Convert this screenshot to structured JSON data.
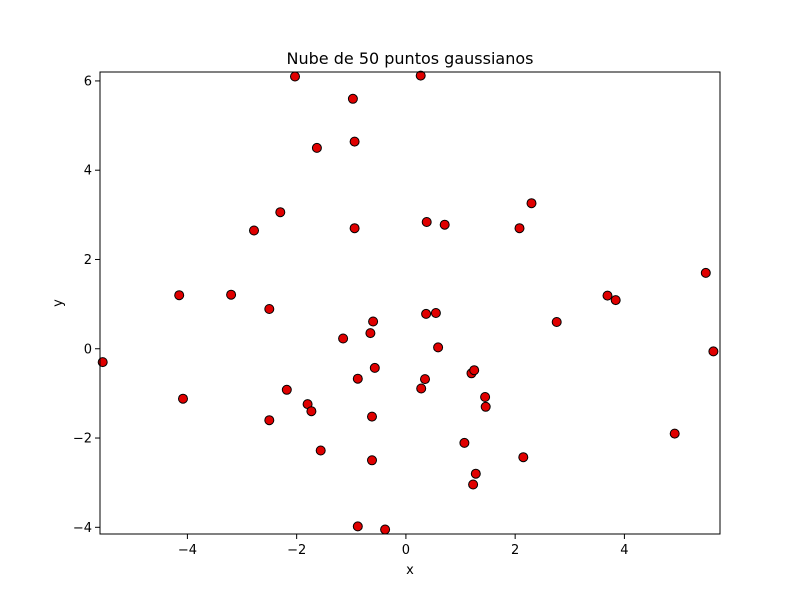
{
  "chart_data": {
    "type": "scatter",
    "title": "Nube de 50 puntos gaussianos",
    "xlabel": "x",
    "ylabel": "y",
    "xlim": [
      -5.6,
      5.75
    ],
    "ylim": [
      -4.15,
      6.2
    ],
    "xticks": [
      -4,
      -2,
      0,
      2,
      4
    ],
    "yticks": [
      -4,
      -2,
      0,
      2,
      4,
      6
    ],
    "xtick_labels": [
      "−4",
      "−2",
      "0",
      "2",
      "4"
    ],
    "ytick_labels": [
      "−4",
      "−2",
      "0",
      "2",
      "4",
      "6"
    ],
    "grid": false,
    "marker_color": "#e00000",
    "marker_edge_color": "#000000",
    "points": [
      {
        "x": -5.55,
        "y": -0.3
      },
      {
        "x": -4.15,
        "y": 1.2
      },
      {
        "x": -4.08,
        "y": -1.12
      },
      {
        "x": -3.2,
        "y": 1.21
      },
      {
        "x": -2.78,
        "y": 2.65
      },
      {
        "x": -2.5,
        "y": 0.89
      },
      {
        "x": -2.5,
        "y": -1.6
      },
      {
        "x": -2.3,
        "y": 3.06
      },
      {
        "x": -2.18,
        "y": -0.92
      },
      {
        "x": -2.03,
        "y": 6.1
      },
      {
        "x": -1.8,
        "y": -1.24
      },
      {
        "x": -1.73,
        "y": -1.4
      },
      {
        "x": -1.63,
        "y": 4.5
      },
      {
        "x": -1.56,
        "y": -2.28
      },
      {
        "x": -1.15,
        "y": 0.23
      },
      {
        "x": -0.97,
        "y": 5.6
      },
      {
        "x": -0.94,
        "y": 4.64
      },
      {
        "x": -0.94,
        "y": 2.7
      },
      {
        "x": -0.88,
        "y": -0.67
      },
      {
        "x": -0.88,
        "y": -3.98
      },
      {
        "x": -0.65,
        "y": 0.35
      },
      {
        "x": -0.62,
        "y": -1.52
      },
      {
        "x": -0.62,
        "y": -2.5
      },
      {
        "x": -0.6,
        "y": 0.61
      },
      {
        "x": -0.57,
        "y": -0.43
      },
      {
        "x": -0.38,
        "y": -4.05
      },
      {
        "x": 0.27,
        "y": 6.12
      },
      {
        "x": 0.28,
        "y": -0.89
      },
      {
        "x": 0.35,
        "y": -0.68
      },
      {
        "x": 0.37,
        "y": 0.78
      },
      {
        "x": 0.38,
        "y": 2.84
      },
      {
        "x": 0.55,
        "y": 0.8
      },
      {
        "x": 0.59,
        "y": 0.03
      },
      {
        "x": 0.71,
        "y": 2.78
      },
      {
        "x": 1.07,
        "y": -2.11
      },
      {
        "x": 1.2,
        "y": -0.55
      },
      {
        "x": 1.23,
        "y": -3.04
      },
      {
        "x": 1.25,
        "y": -0.48
      },
      {
        "x": 1.28,
        "y": -2.8
      },
      {
        "x": 1.45,
        "y": -1.08
      },
      {
        "x": 1.46,
        "y": -1.3
      },
      {
        "x": 2.08,
        "y": 2.7
      },
      {
        "x": 2.15,
        "y": -2.43
      },
      {
        "x": 2.3,
        "y": 3.26
      },
      {
        "x": 2.76,
        "y": 0.6
      },
      {
        "x": 3.69,
        "y": 1.19
      },
      {
        "x": 3.84,
        "y": 1.09
      },
      {
        "x": 4.92,
        "y": -1.9
      },
      {
        "x": 5.49,
        "y": 1.7
      },
      {
        "x": 5.63,
        "y": -0.06
      }
    ]
  }
}
